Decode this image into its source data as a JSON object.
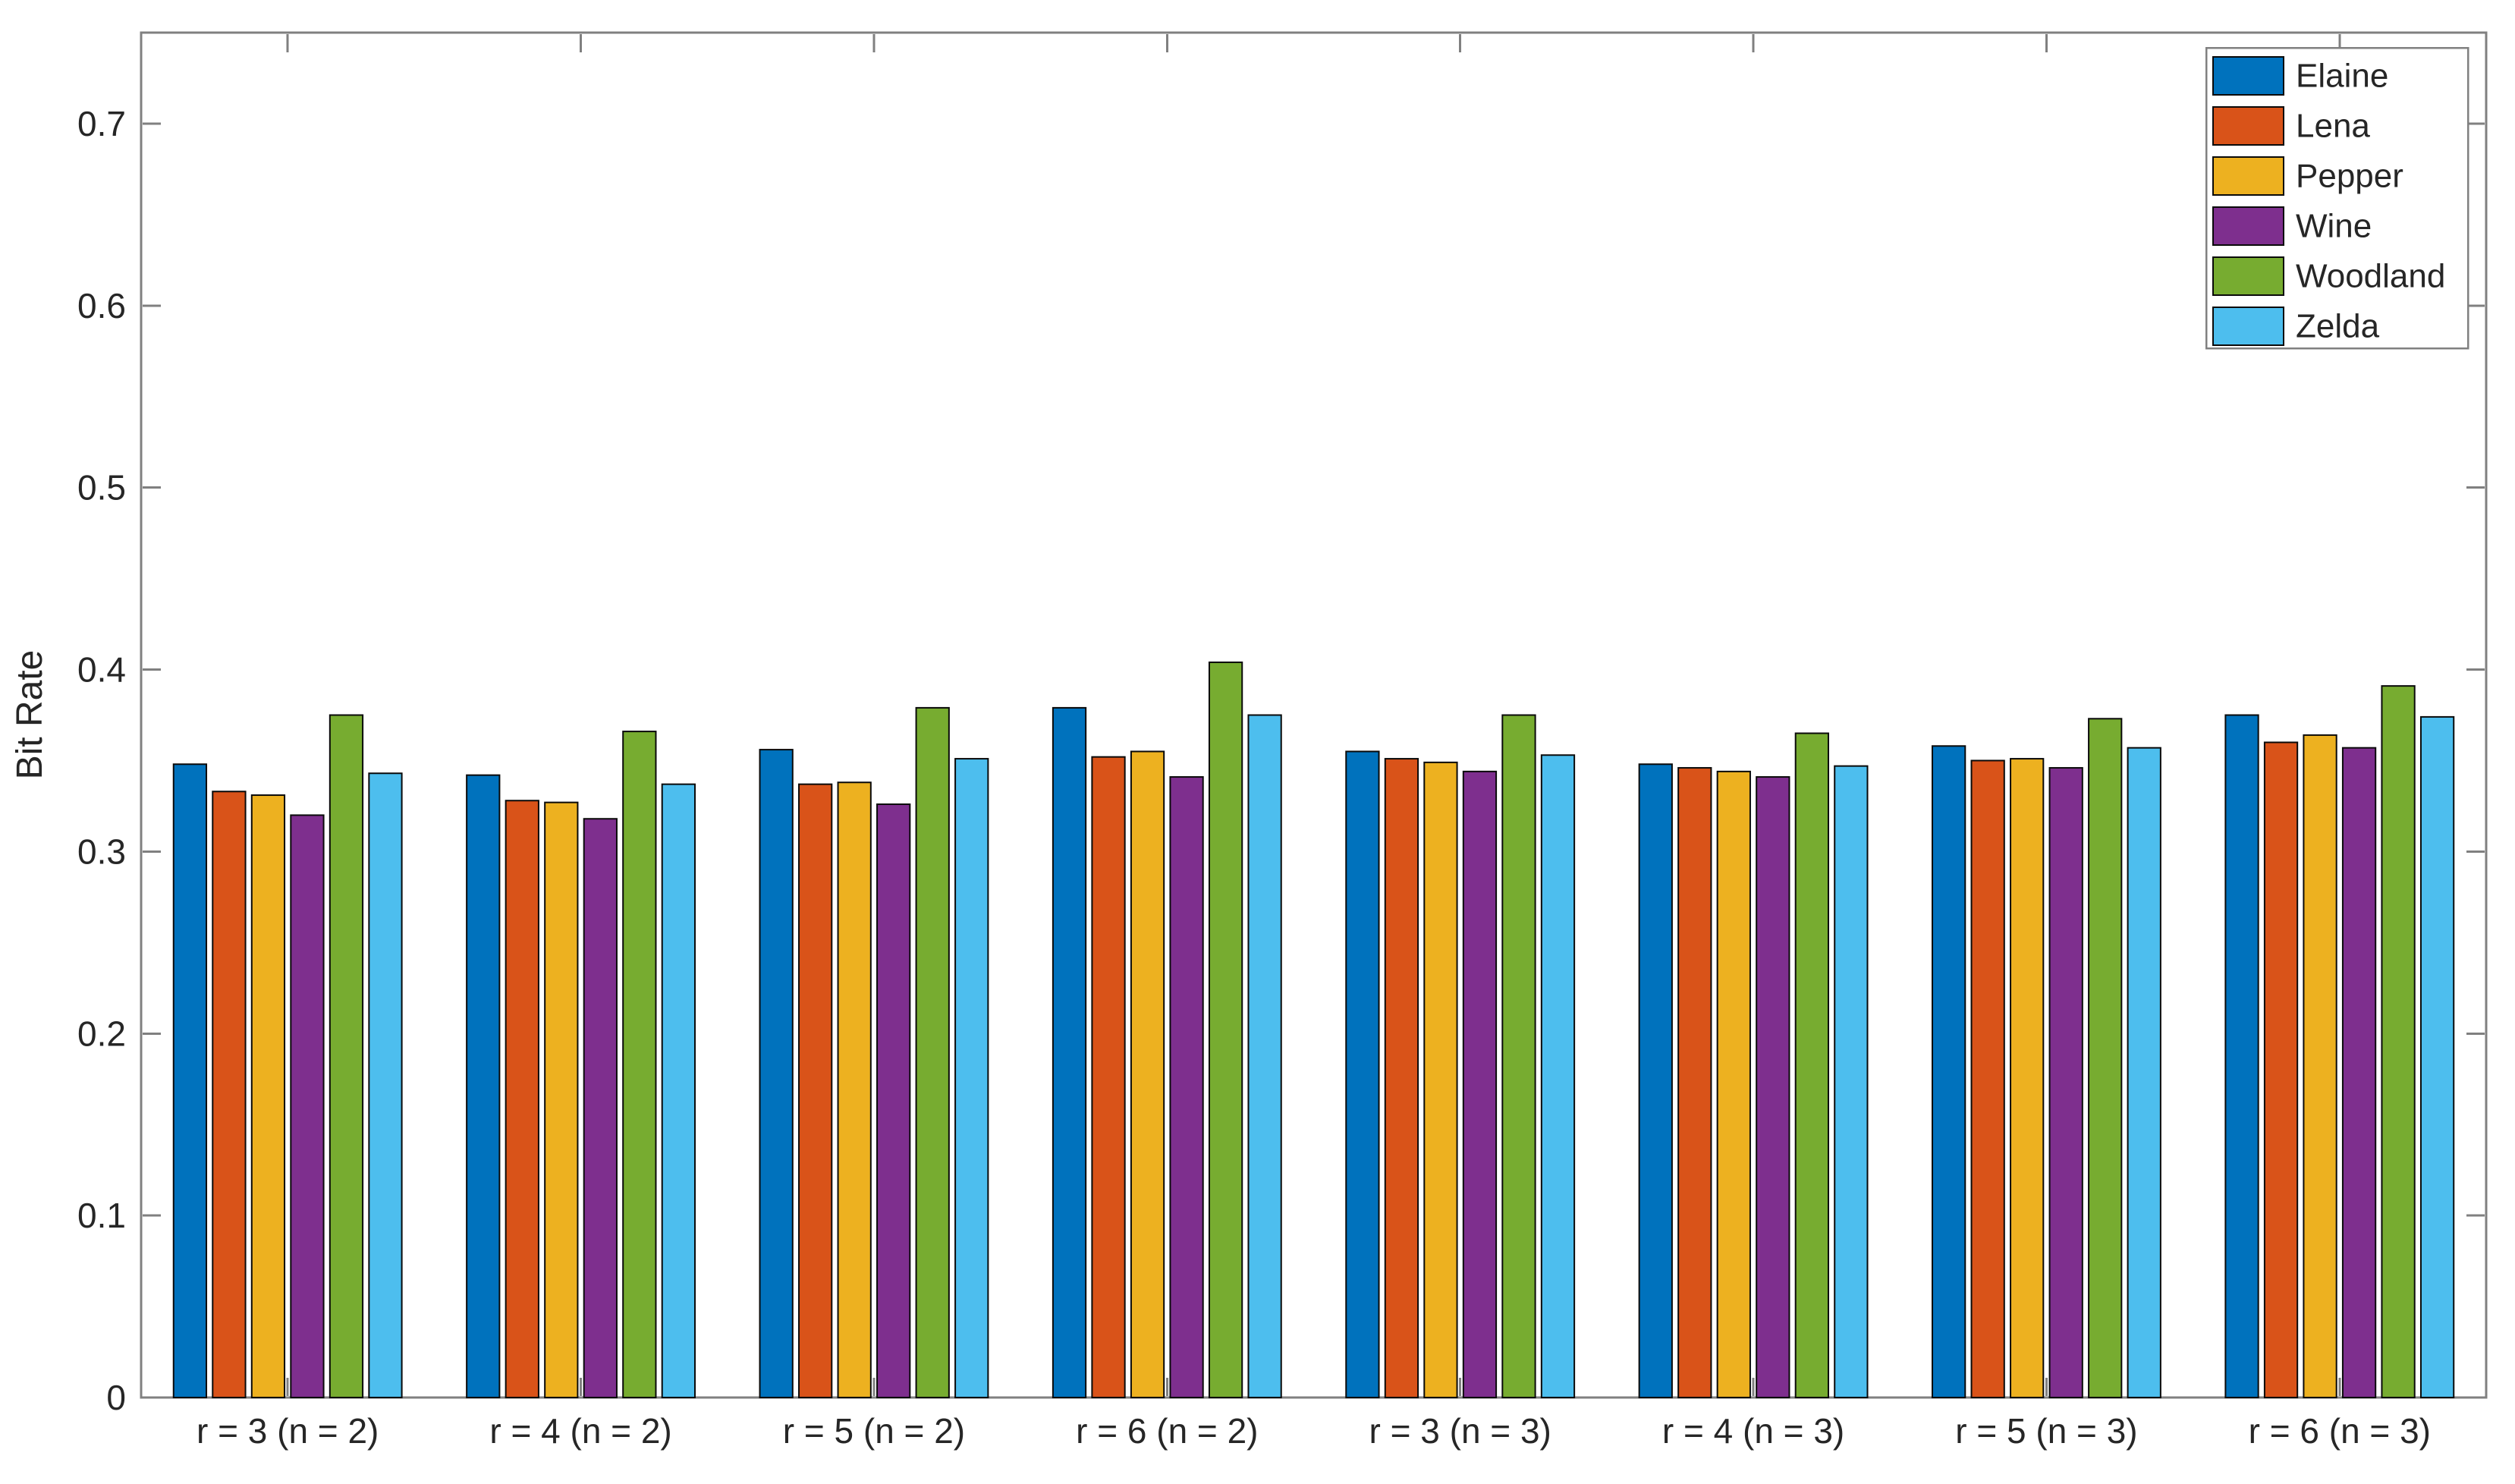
{
  "figure": {
    "background": "#ffffff",
    "axis_color": "#808080",
    "text_color": "#262626",
    "bar_edge_color": "#0a0a0a"
  },
  "chart_data": {
    "type": "bar",
    "title": "",
    "xlabel": "",
    "ylabel": "Bit Rate",
    "ylim": [
      0,
      0.75
    ],
    "yticks": [
      0,
      0.1,
      0.2,
      0.3,
      0.4,
      0.5,
      0.6,
      0.7
    ],
    "grid": false,
    "legend_position": "top-right-inside",
    "categories": [
      "r = 3 (n = 2)",
      "r = 4 (n = 2)",
      "r = 5 (n = 2)",
      "r = 6 (n = 2)",
      "r = 3 (n = 3)",
      "r = 4 (n = 3)",
      "r = 5 (n = 3)",
      "r = 6 (n = 3)"
    ],
    "series": [
      {
        "name": "Elaine",
        "color": "#0072BD",
        "values": [
          0.348,
          0.342,
          0.356,
          0.379,
          0.355,
          0.348,
          0.358,
          0.375
        ]
      },
      {
        "name": "Lena",
        "color": "#D95319",
        "values": [
          0.333,
          0.328,
          0.337,
          0.352,
          0.351,
          0.346,
          0.35,
          0.36
        ]
      },
      {
        "name": "Pepper",
        "color": "#EDB120",
        "values": [
          0.331,
          0.327,
          0.338,
          0.355,
          0.349,
          0.344,
          0.351,
          0.364
        ]
      },
      {
        "name": "Wine",
        "color": "#7E2F8E",
        "values": [
          0.32,
          0.318,
          0.326,
          0.341,
          0.344,
          0.341,
          0.346,
          0.357
        ]
      },
      {
        "name": "Woodland",
        "color": "#77AC30",
        "values": [
          0.375,
          0.366,
          0.379,
          0.404,
          0.375,
          0.365,
          0.373,
          0.391
        ]
      },
      {
        "name": "Zelda",
        "color": "#4DBEEE",
        "values": [
          0.343,
          0.337,
          0.351,
          0.375,
          0.353,
          0.347,
          0.357,
          0.374
        ]
      }
    ]
  }
}
